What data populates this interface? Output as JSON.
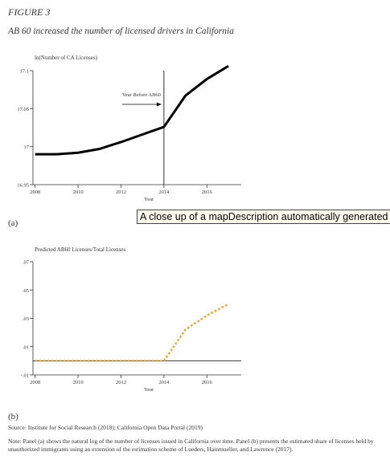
{
  "header": {
    "figure_label": "FIGURE 3",
    "title": "AB 60 increased the number of licensed drivers in California"
  },
  "panels": {
    "a_label": "(a)",
    "b_label": "(b)"
  },
  "tooltip": {
    "text": "A close up of a mapDescription automatically generated"
  },
  "footer": {
    "source": "Source: Institute for Social Research (2018); California Open Data Portal (2019)",
    "note": "Note: Panel (a) shows the natural log of the number of licenses issued in California over time. Panel (b) presents the estimated share of licenses held by unauthorized immigrants using an extension of the estimation scheme of Lueders, Hainmueller, and Lawrence (2017)."
  },
  "colors": {
    "line_a": "#000000",
    "line_b": "#e0b050",
    "axis": "#333333"
  },
  "chart_data": [
    {
      "type": "line",
      "ylabel": "ln(Number of CA Licenses)",
      "xlabel": "Year",
      "xlim": [
        2007.9,
        2017.6
      ],
      "ylim": [
        16.95,
        17.1
      ],
      "xticks": [
        2008,
        2010,
        2012,
        2014,
        2016
      ],
      "yticks": [
        16.95,
        17,
        17.05,
        17.1
      ],
      "ytick_labels": [
        "16.95",
        "17",
        "17.05",
        "17.1"
      ],
      "vline": 2014,
      "annotation": "Year Before AB60",
      "series": [
        {
          "x": [
            2008,
            2009,
            2010,
            2011,
            2012,
            2013,
            2014,
            2015,
            2016,
            2017
          ],
          "y": [
            16.99,
            16.99,
            16.992,
            16.997,
            17.006,
            17.016,
            17.026,
            17.067,
            17.089,
            17.106
          ]
        }
      ]
    },
    {
      "type": "line",
      "ylabel": "Predicted AB60 Licenses/Total Licenses",
      "xlabel": "Year",
      "xlim": [
        2007.9,
        2017.6
      ],
      "ylim": [
        -0.01,
        0.07
      ],
      "xticks": [
        2008,
        2010,
        2012,
        2014,
        2016
      ],
      "yticks": [
        -0.01,
        0.01,
        0.03,
        0.05,
        0.07
      ],
      "ytick_labels": [
        "-.01",
        ".01",
        ".03",
        ".05",
        ".07"
      ],
      "hline": 0,
      "series": [
        {
          "x": [
            2008,
            2009,
            2010,
            2011,
            2012,
            2013,
            2014,
            2015,
            2016,
            2017
          ],
          "y": [
            0,
            0,
            0,
            0,
            0,
            0,
            0,
            0.022,
            0.032,
            0.04
          ]
        }
      ]
    }
  ]
}
